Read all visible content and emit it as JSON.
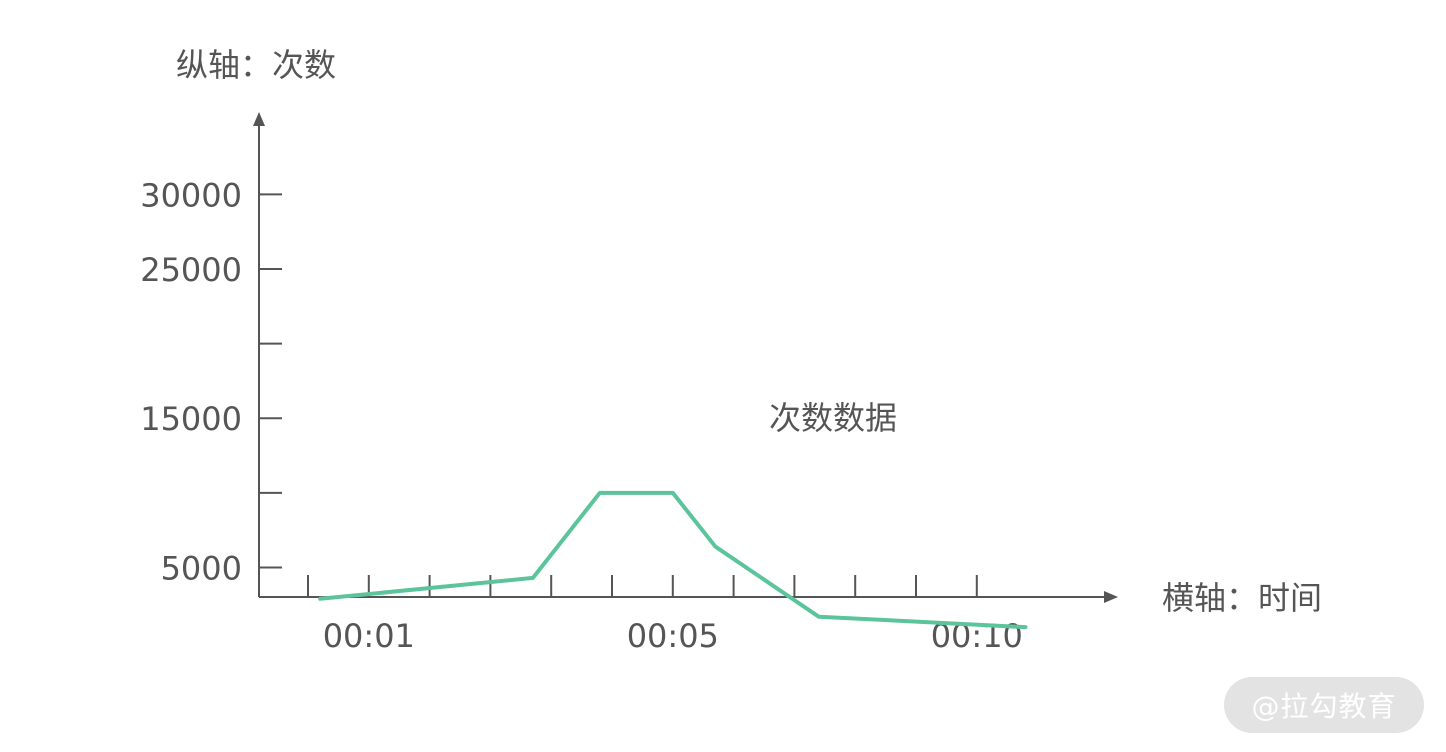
{
  "chart_data": {
    "type": "line",
    "ylabel": "纵轴：次数",
    "xlabel": "横轴：时间",
    "ylim": [
      -1000,
      39000
    ],
    "x_ticks_minor": [
      0.8,
      1.8,
      2.8,
      3.8,
      4.8,
      5.8,
      6.8,
      7.8,
      8.8,
      9.8,
      10.8,
      11.8
    ],
    "x_tick_labels": [
      {
        "x": 1.8,
        "label": "00:01"
      },
      {
        "x": 6.8,
        "label": "00:05"
      },
      {
        "x": 11.8,
        "label": "00:10"
      }
    ],
    "y_ticks": [
      30000,
      25000,
      20000,
      15000,
      10000,
      5000
    ],
    "y_tick_labels": [
      {
        "value": 30000,
        "label": "30000"
      },
      {
        "value": 25000,
        "label": "25000"
      },
      {
        "value": 15000,
        "label": "15000"
      },
      {
        "value": 5000,
        "label": "5000"
      }
    ],
    "series": [
      {
        "name": "次数数据",
        "color": "#5cc49a",
        "points": [
          {
            "x": 1.0,
            "y": 2900
          },
          {
            "x": 4.5,
            "y": 4300
          },
          {
            "x": 5.6,
            "y": 10000
          },
          {
            "x": 6.8,
            "y": 10000
          },
          {
            "x": 7.5,
            "y": 6400
          },
          {
            "x": 9.2,
            "y": 1700
          },
          {
            "x": 12.6,
            "y": 1000
          }
        ]
      }
    ]
  },
  "watermark": "@拉勾教育"
}
